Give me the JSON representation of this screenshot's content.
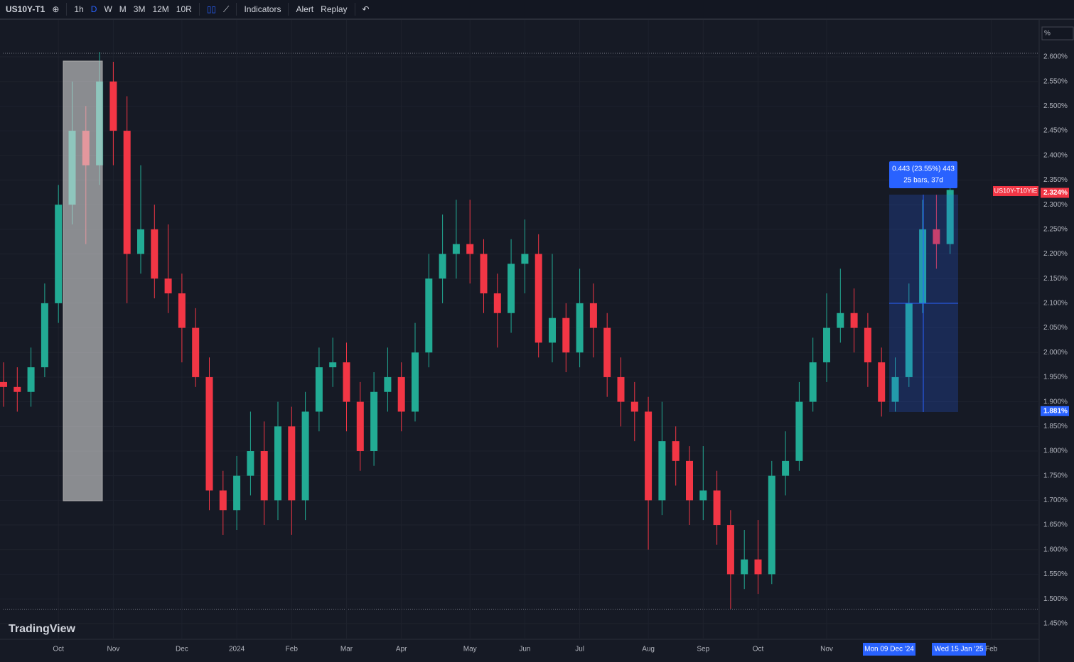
{
  "toolbar": {
    "symbol": "US10Y-T1",
    "intervals": [
      "1h",
      "D",
      "W",
      "M",
      "3M",
      "12M",
      "10R"
    ],
    "indicators": "Indicators",
    "alert": "Alert",
    "replay": "Replay"
  },
  "chart_data": {
    "type": "candlestick",
    "categories": [
      null,
      null,
      null,
      null,
      "Oct",
      null,
      null,
      null,
      "Nov",
      null,
      null,
      null,
      null,
      "Dec",
      null,
      null,
      null,
      "2024",
      null,
      null,
      null,
      "Feb",
      null,
      null,
      null,
      "Mar",
      null,
      null,
      null,
      "Apr",
      null,
      null,
      null,
      null,
      "May",
      null,
      null,
      null,
      "Jun",
      null,
      null,
      null,
      "Jul",
      null,
      null,
      null,
      null,
      "Aug",
      null,
      null,
      null,
      "Sep",
      null,
      null,
      null,
      "Oct",
      null,
      null,
      null,
      null,
      "Nov",
      null,
      null,
      null,
      null,
      null,
      null,
      null,
      null,
      null,
      null,
      null,
      "Feb"
    ],
    "open": [
      1.94,
      1.93,
      1.92,
      1.97,
      2.1,
      2.3,
      2.45,
      2.38,
      2.55,
      2.45,
      2.2,
      2.25,
      2.15,
      2.12,
      2.05,
      1.95,
      1.72,
      1.68,
      1.75,
      1.8,
      1.7,
      1.85,
      1.7,
      1.88,
      1.97,
      1.98,
      1.9,
      1.8,
      1.92,
      1.95,
      1.88,
      2.0,
      2.15,
      2.2,
      2.22,
      2.2,
      2.12,
      2.08,
      2.18,
      2.2,
      2.02,
      2.07,
      2.0,
      2.1,
      2.05,
      1.95,
      1.9,
      1.88,
      1.7,
      1.82,
      1.78,
      1.7,
      1.72,
      1.65,
      1.55,
      1.58,
      1.55,
      1.75,
      1.78,
      1.9,
      1.98,
      2.05,
      2.08,
      2.05,
      1.98,
      1.9,
      1.95,
      2.1,
      2.25,
      2.22,
      null,
      null,
      null
    ],
    "high": [
      1.98,
      1.97,
      2.01,
      2.14,
      2.34,
      2.55,
      2.5,
      2.61,
      2.59,
      2.52,
      2.38,
      2.3,
      2.26,
      2.16,
      2.09,
      1.99,
      1.76,
      1.79,
      1.88,
      1.86,
      1.9,
      1.89,
      1.92,
      2.01,
      2.03,
      2.02,
      1.94,
      1.96,
      2.01,
      1.98,
      2.06,
      2.2,
      2.28,
      2.31,
      2.31,
      2.23,
      2.16,
      2.23,
      2.27,
      2.24,
      2.2,
      2.1,
      2.17,
      2.14,
      2.08,
      1.99,
      1.94,
      1.91,
      1.9,
      1.85,
      1.81,
      1.81,
      1.76,
      1.68,
      1.64,
      1.66,
      1.78,
      1.84,
      1.94,
      2.03,
      2.12,
      2.17,
      2.13,
      2.08,
      2.01,
      1.99,
      2.14,
      2.31,
      2.32,
      2.35,
      null,
      null,
      null
    ],
    "low": [
      1.89,
      1.88,
      1.89,
      1.95,
      2.06,
      2.26,
      2.22,
      2.34,
      2.38,
      2.1,
      2.16,
      2.11,
      2.08,
      1.98,
      1.93,
      1.68,
      1.63,
      1.64,
      1.71,
      1.65,
      1.66,
      1.63,
      1.66,
      1.84,
      1.93,
      1.84,
      1.76,
      1.77,
      1.88,
      1.84,
      1.86,
      1.97,
      2.1,
      2.15,
      2.14,
      2.08,
      2.01,
      2.04,
      2.12,
      1.99,
      1.98,
      1.96,
      1.97,
      1.99,
      1.91,
      1.85,
      1.82,
      1.6,
      1.67,
      1.73,
      1.65,
      1.66,
      1.61,
      1.48,
      1.52,
      1.51,
      1.53,
      1.71,
      1.76,
      1.88,
      1.94,
      2.02,
      2.0,
      1.93,
      1.87,
      1.88,
      1.93,
      2.08,
      2.17,
      2.2,
      null,
      null,
      null
    ],
    "close": [
      1.93,
      1.92,
      1.97,
      2.1,
      2.3,
      2.45,
      2.38,
      2.55,
      2.45,
      2.2,
      2.25,
      2.15,
      2.12,
      2.05,
      1.95,
      1.72,
      1.68,
      1.75,
      1.8,
      1.7,
      1.85,
      1.7,
      1.88,
      1.97,
      1.98,
      1.9,
      1.8,
      1.92,
      1.95,
      1.88,
      2.0,
      2.15,
      2.2,
      2.22,
      2.2,
      2.12,
      2.08,
      2.18,
      2.2,
      2.02,
      2.07,
      2.0,
      2.1,
      2.05,
      1.95,
      1.9,
      1.88,
      1.7,
      1.82,
      1.78,
      1.7,
      1.72,
      1.65,
      1.55,
      1.58,
      1.55,
      1.75,
      1.78,
      1.9,
      1.98,
      2.05,
      2.08,
      2.05,
      1.98,
      1.9,
      1.95,
      2.1,
      2.25,
      2.22,
      2.33,
      null,
      null,
      null
    ],
    "up_color": "#22ab94",
    "down_color": "#f23645",
    "ylim": [
      1.418,
      2.675
    ],
    "yticks": [
      {
        "value": 1.45,
        "label": "1.450%"
      },
      {
        "value": 1.5,
        "label": "1.500%"
      },
      {
        "value": 1.55,
        "label": "1.550%"
      },
      {
        "value": 1.6,
        "label": "1.600%"
      },
      {
        "value": 1.65,
        "label": "1.650%"
      },
      {
        "value": 1.7,
        "label": "1.700%"
      },
      {
        "value": 1.75,
        "label": "1.750%"
      },
      {
        "value": 1.8,
        "label": "1.800%"
      },
      {
        "value": 1.85,
        "label": "1.850%"
      },
      {
        "value": 1.9,
        "label": "1.900%"
      },
      {
        "value": 1.95,
        "label": "1.950%"
      },
      {
        "value": 2.0,
        "label": "2.000%"
      },
      {
        "value": 2.05,
        "label": "2.050%"
      },
      {
        "value": 2.1,
        "label": "2.100%"
      },
      {
        "value": 2.15,
        "label": "2.150%"
      },
      {
        "value": 2.2,
        "label": "2.200%"
      },
      {
        "value": 2.25,
        "label": "2.250%"
      },
      {
        "value": 2.3,
        "label": "2.300%"
      },
      {
        "value": 2.35,
        "label": "2.350%"
      },
      {
        "value": 2.4,
        "label": "2.400%"
      },
      {
        "value": 2.45,
        "label": "2.450%"
      },
      {
        "value": 2.5,
        "label": "2.500%"
      },
      {
        "value": 2.55,
        "label": "2.550%"
      },
      {
        "value": 2.6,
        "label": "2.600%"
      }
    ],
    "grid": true,
    "unit_label": "%",
    "watermark": "TradingView",
    "series_label": "US10Y-T10YIE",
    "price_labels": [
      {
        "value": 2.324,
        "label": "2.324%",
        "color": "#f23645"
      },
      {
        "value": 1.881,
        "label": "1.881%",
        "color": "#2962ff"
      }
    ],
    "measure": [
      "0.443 (23.55%) 443",
      "25 bars, 37d"
    ],
    "crosshair_labels": [
      "Mon 09 Dec '24",
      "Wed 15 Jan '25"
    ]
  }
}
